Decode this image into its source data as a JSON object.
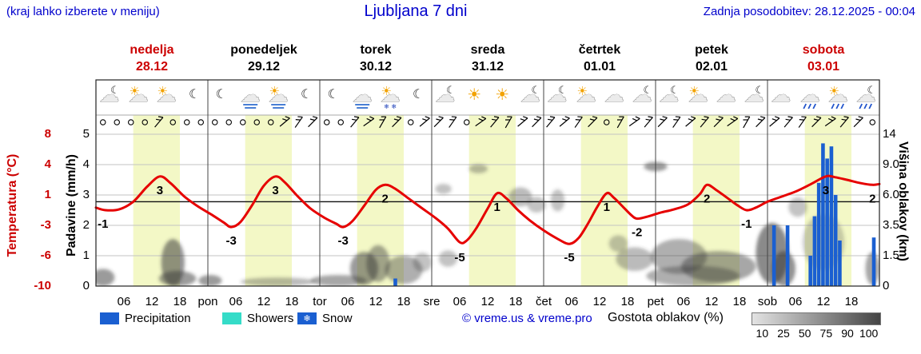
{
  "header": {
    "menu_hint": "(kraj lahko izberete v meniju)",
    "title": "Ljubljana 7 dni",
    "last_update": "Zadnja posodobitev: 28.12.2025 - 00:04"
  },
  "axes": {
    "temp_label": "Temperatura (°C)",
    "precip_label": "Padavine (mm/h)",
    "cloud_label": "Višina oblakov (km)",
    "temp_ticks": [
      "8",
      "4",
      "1",
      "-3",
      "-6",
      "-10"
    ],
    "precip_ticks": [
      "5",
      "4",
      "3",
      "2",
      "1",
      "0"
    ],
    "cloud_ticks": [
      "14",
      "9.0",
      "6.0",
      "3.5",
      "1.5",
      "0"
    ]
  },
  "days": [
    {
      "name": "nedelja",
      "date": "28.12",
      "highlight": true
    },
    {
      "name": "ponedeljek",
      "date": "29.12",
      "highlight": false
    },
    {
      "name": "torek",
      "date": "30.12",
      "highlight": false
    },
    {
      "name": "sreda",
      "date": "31.12",
      "highlight": false
    },
    {
      "name": "četrtek",
      "date": "01.01",
      "highlight": false
    },
    {
      "name": "petek",
      "date": "02.01",
      "highlight": false
    },
    {
      "name": "sobota",
      "date": "03.01",
      "highlight": true
    }
  ],
  "x_axis": [
    "06",
    "12",
    "18",
    "pon",
    "06",
    "12",
    "18",
    "tor",
    "06",
    "12",
    "18",
    "sre",
    "06",
    "12",
    "18",
    "čet",
    "06",
    "12",
    "18",
    "pet",
    "06",
    "12",
    "18",
    "sob",
    "06",
    "12",
    "18"
  ],
  "legend": {
    "precipitation": "Precipitation",
    "showers": "Showers",
    "snow": "Snow",
    "snow_glyph": "❄",
    "copyright": "© vreme.us & vreme.pro",
    "cloud_density": "Gostota oblakov (%)",
    "cloud_scale": [
      "10",
      "25",
      "50",
      "75",
      "90",
      "100"
    ]
  },
  "colors": {
    "accent_blue": "#0000cc",
    "red_text": "#cc0000",
    "curve_red": "#e60000",
    "precip_blue": "#1a5fd1",
    "showers_cyan": "#35dcc8",
    "day_band": "#f3f8c6",
    "cloud_gray": "#3a3a3a"
  },
  "chart_data": {
    "type": "line",
    "title": "Ljubljana 7 dni",
    "x_hours_range": [
      0,
      168
    ],
    "temp_axis": {
      "label": "Temperatura (°C)",
      "range": [
        -10,
        8
      ]
    },
    "precip_axis": {
      "label": "Padavine (mm/h)",
      "range": [
        0,
        5
      ]
    },
    "cloud_axis": {
      "label": "Višina oblakov (km)",
      "ticks": [
        0,
        1.5,
        3.5,
        6,
        9,
        14
      ]
    },
    "daylight_band_hours": [
      8,
      18
    ],
    "temperature": [
      [
        0,
        -0.7
      ],
      [
        2,
        -1
      ],
      [
        5,
        -0.9
      ],
      [
        8,
        0
      ],
      [
        11,
        1.8
      ],
      [
        13.7,
        3
      ],
      [
        16,
        2.2
      ],
      [
        19,
        0.6
      ],
      [
        22,
        -0.6
      ],
      [
        25,
        -1.6
      ],
      [
        27.5,
        -2.5
      ],
      [
        29,
        -3
      ],
      [
        31,
        -2.4
      ],
      [
        33.5,
        -0.4
      ],
      [
        36,
        1.9
      ],
      [
        38.5,
        3
      ],
      [
        40.5,
        2.3
      ],
      [
        43,
        0.8
      ],
      [
        46,
        -0.8
      ],
      [
        49,
        -1.9
      ],
      [
        51.5,
        -2.6
      ],
      [
        53,
        -3
      ],
      [
        55,
        -2.3
      ],
      [
        57.5,
        -0.5
      ],
      [
        60,
        1.4
      ],
      [
        62,
        2
      ],
      [
        64,
        1.6
      ],
      [
        67,
        0.4
      ],
      [
        70,
        -0.8
      ],
      [
        73,
        -2
      ],
      [
        75.5,
        -3.2
      ],
      [
        78,
        -4.8
      ],
      [
        79.5,
        -4.6
      ],
      [
        81.5,
        -3.2
      ],
      [
        84,
        -0.8
      ],
      [
        86,
        1
      ],
      [
        88,
        0.4
      ],
      [
        90.5,
        -1
      ],
      [
        93,
        -2.2
      ],
      [
        96,
        -3.4
      ],
      [
        99,
        -4.4
      ],
      [
        101.5,
        -5
      ],
      [
        103.5,
        -4.3
      ],
      [
        105.5,
        -2.6
      ],
      [
        107.5,
        -0.6
      ],
      [
        109.5,
        1
      ],
      [
        111,
        0.5
      ],
      [
        113,
        -0.6
      ],
      [
        114.8,
        -1.6
      ],
      [
        116,
        -2
      ],
      [
        118,
        -1.8
      ],
      [
        121,
        -1.3
      ],
      [
        124,
        -0.9
      ],
      [
        127,
        -0.3
      ],
      [
        129.5,
        0.9
      ],
      [
        131,
        2
      ],
      [
        133,
        1.4
      ],
      [
        135.5,
        0.4
      ],
      [
        137.5,
        -0.4
      ],
      [
        139.5,
        -1
      ],
      [
        141.5,
        -0.7
      ],
      [
        144,
        0
      ],
      [
        147,
        0.6
      ],
      [
        150,
        1.2
      ],
      [
        153,
        2
      ],
      [
        156.5,
        3
      ],
      [
        158.5,
        2.9
      ],
      [
        161,
        2.6
      ],
      [
        164,
        2.2
      ],
      [
        166.5,
        2
      ],
      [
        168,
        2.1
      ]
    ],
    "temp_labels": [
      {
        "h": 1.5,
        "v": -1,
        "text": "-1"
      },
      {
        "h": 13.7,
        "v": 3,
        "text": "3"
      },
      {
        "h": 29,
        "v": -3,
        "text": "-3"
      },
      {
        "h": 38.5,
        "v": 3,
        "text": "3"
      },
      {
        "h": 53,
        "v": -3,
        "text": "-3"
      },
      {
        "h": 62,
        "v": 2,
        "text": "2"
      },
      {
        "h": 78,
        "v": -5,
        "text": "-5"
      },
      {
        "h": 86,
        "v": 1,
        "text": "1"
      },
      {
        "h": 101.5,
        "v": -5,
        "text": "-5"
      },
      {
        "h": 109.5,
        "v": 1,
        "text": "1"
      },
      {
        "h": 116,
        "v": -2,
        "text": "-2"
      },
      {
        "h": 131,
        "v": 2,
        "text": "2"
      },
      {
        "h": 139.5,
        "v": -1,
        "text": "-1"
      },
      {
        "h": 156.5,
        "v": 3,
        "text": "3"
      },
      {
        "h": 166.5,
        "v": 2,
        "text": "2"
      }
    ],
    "precipitation": [
      [
        64.2,
        0.25
      ],
      [
        145.4,
        2.0
      ],
      [
        148.3,
        2.0
      ],
      [
        153.2,
        1.0
      ],
      [
        154.1,
        2.3
      ],
      [
        155.0,
        3.4
      ],
      [
        155.9,
        4.7
      ],
      [
        156.8,
        4.2
      ],
      [
        157.7,
        4.6
      ],
      [
        158.6,
        3.0
      ],
      [
        159.5,
        1.5
      ],
      [
        166.8,
        1.6
      ]
    ],
    "clouds": [
      [
        1.5,
        0.4,
        5,
        0.9,
        0.5
      ],
      [
        16.5,
        1.3,
        5,
        2.6,
        0.55
      ],
      [
        17.5,
        0.35,
        8,
        0.8,
        0.5
      ],
      [
        24.5,
        0.25,
        5,
        0.6,
        0.5
      ],
      [
        39,
        0.2,
        16,
        0.45,
        0.35
      ],
      [
        52,
        0.25,
        12,
        0.6,
        0.45
      ],
      [
        57.5,
        0.9,
        6,
        1.7,
        0.5
      ],
      [
        60.5,
        1.2,
        5,
        2.0,
        0.45
      ],
      [
        66,
        0.8,
        8,
        1.4,
        0.4
      ],
      [
        70,
        1.2,
        4,
        1.0,
        0.3
      ],
      [
        74.5,
        6.6,
        3.5,
        1.0,
        0.3
      ],
      [
        75.5,
        1.4,
        4,
        0.9,
        0.3
      ],
      [
        82,
        8.6,
        4,
        0.9,
        0.35
      ],
      [
        91,
        5.9,
        5,
        1.7,
        0.35
      ],
      [
        94.5,
        5.2,
        4,
        1.3,
        0.3
      ],
      [
        99,
        5.6,
        3,
        1.9,
        0.3
      ],
      [
        112,
        2.3,
        4,
        1.1,
        0.3
      ],
      [
        115.5,
        1.4,
        8,
        1.3,
        0.35
      ],
      [
        120,
        8.9,
        5,
        1.1,
        0.5
      ],
      [
        125,
        1.6,
        12,
        2.0,
        0.4
      ],
      [
        128,
        0.5,
        20,
        1.0,
        0.4
      ],
      [
        133.5,
        1.0,
        16,
        1.6,
        0.45
      ],
      [
        145,
        1.9,
        7,
        3.6,
        0.6
      ],
      [
        147.5,
        0.9,
        5,
        1.8,
        0.55
      ],
      [
        150.5,
        5.0,
        4,
        1.6,
        0.3
      ],
      [
        156,
        2.6,
        9,
        3.6,
        0.25
      ],
      [
        166.5,
        0.9,
        3,
        1.7,
        0.45
      ]
    ],
    "icons": [
      [
        [
          "moon",
          "cloud"
        ],
        [
          "sun",
          "cloud"
        ],
        [
          "sun",
          "cloud"
        ],
        [
          "moon"
        ]
      ],
      [
        [
          "moon"
        ],
        [
          "cloud",
          "fog"
        ],
        [
          "sun",
          "cloud",
          "fog"
        ],
        [
          "moon"
        ]
      ],
      [
        [
          "moon"
        ],
        [
          "cloud",
          "fog"
        ],
        [
          "sun",
          "cloud",
          "snow"
        ],
        [
          "moon"
        ]
      ],
      [
        [
          "moon",
          "cloud"
        ],
        [
          "sun"
        ],
        [
          "sun"
        ],
        [
          "moon",
          "cloud"
        ]
      ],
      [
        [
          "moon",
          "cloud"
        ],
        [
          "sun",
          "cloud"
        ],
        [
          "cloud"
        ],
        [
          "moon",
          "cloud"
        ]
      ],
      [
        [
          "moon",
          "cloud"
        ],
        [
          "sun",
          "cloud"
        ],
        [
          "cloud"
        ],
        [
          "moon",
          "cloud"
        ]
      ],
      [
        [
          "cloud"
        ],
        [
          "cloud",
          "rain"
        ],
        [
          "sun",
          "cloud",
          "rain"
        ],
        [
          "moon",
          "cloud",
          "rain"
        ]
      ]
    ],
    "wind": [
      -1,
      -1,
      -1,
      -1,
      50,
      -1,
      -1,
      -1,
      -1,
      -1,
      -1,
      -1,
      -1,
      40,
      55,
      45,
      -1,
      -1,
      50,
      35,
      60,
      45,
      -1,
      40,
      45,
      55,
      -1,
      35,
      50,
      60,
      40,
      45,
      50,
      40,
      55,
      45,
      -1,
      60,
      35,
      50,
      45,
      55,
      40,
      50,
      45,
      35,
      60,
      45,
      40,
      50,
      55,
      45,
      35,
      50,
      45,
      -1
    ]
  }
}
